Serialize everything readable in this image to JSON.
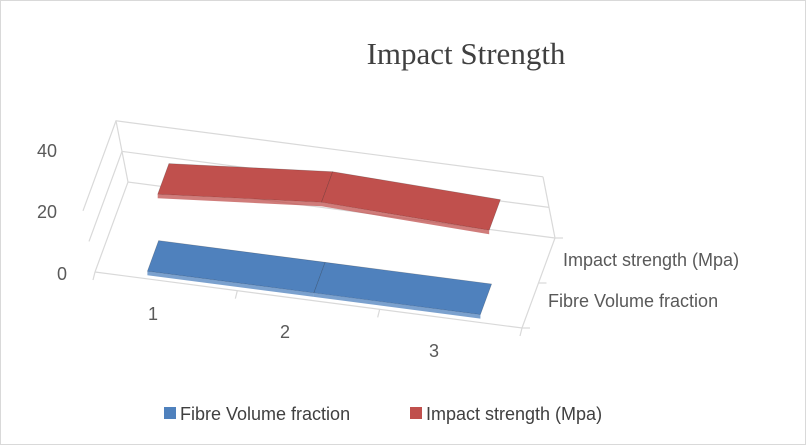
{
  "chart_data": {
    "type": "area",
    "view": "3d",
    "title": "Impact Strength",
    "categories": [
      "1",
      "2",
      "3"
    ],
    "series": [
      {
        "name": "Fibre Volume fraction",
        "values": [
          0.1,
          0.2,
          0.3
        ],
        "color": "#4f81bd"
      },
      {
        "name": "Impact strength (Mpa)",
        "values": [
          21,
          30,
          26
        ],
        "color": "#c0504d"
      }
    ],
    "y_ticks": [
      "0",
      "20",
      "40"
    ],
    "ylim": [
      0,
      40
    ],
    "depth_labels": [
      "Fibre Volume fraction",
      "Impact strength (Mpa)"
    ],
    "legend": {
      "position": "bottom",
      "items": [
        {
          "label": "Fibre Volume fraction",
          "color": "#4f81bd"
        },
        {
          "label": "Impact strength (Mpa)",
          "color": "#c0504d"
        }
      ]
    },
    "grid": true
  }
}
